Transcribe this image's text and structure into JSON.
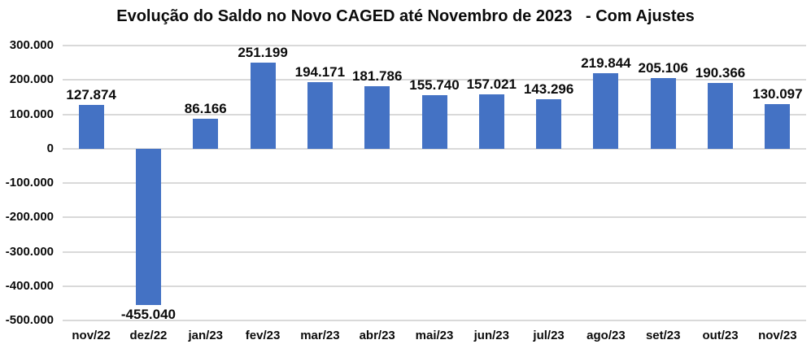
{
  "title": "Evolução do Saldo no Novo CAGED até Novembro de 2023   - Com Ajustes",
  "chart_data": {
    "type": "bar",
    "title": "Evolução do Saldo no Novo CAGED até Novembro de 2023   - Com Ajustes",
    "categories": [
      "nov/22",
      "dez/22",
      "jan/23",
      "fev/23",
      "mar/23",
      "abr/23",
      "mai/23",
      "jun/23",
      "jul/23",
      "ago/23",
      "set/23",
      "out/23",
      "nov/23"
    ],
    "values": [
      127874,
      -455040,
      86166,
      251199,
      194171,
      181786,
      155740,
      157021,
      143296,
      219844,
      205106,
      190366,
      130097
    ],
    "data_labels": [
      "127.874",
      "-455.040",
      "86.166",
      "251.199",
      "194.171",
      "181.786",
      "155.740",
      "157.021",
      "143.296",
      "219.844",
      "205.106",
      "190.366",
      "130.097"
    ],
    "xlabel": "",
    "ylabel": "",
    "ylim": [
      -500000,
      300000
    ],
    "ytick_step": 100000,
    "ytick_labels": [
      "300.000",
      "200.000",
      "100.000",
      "0",
      "-100.000",
      "-200.000",
      "-300.000",
      "-400.000",
      "-500.000"
    ],
    "grid": true,
    "legend_position": "none",
    "bar_color": "#4472C4",
    "gridline_color": "#D9D9D9",
    "text_color": "#0B0B0B",
    "background_color": "#FFFFFF"
  }
}
